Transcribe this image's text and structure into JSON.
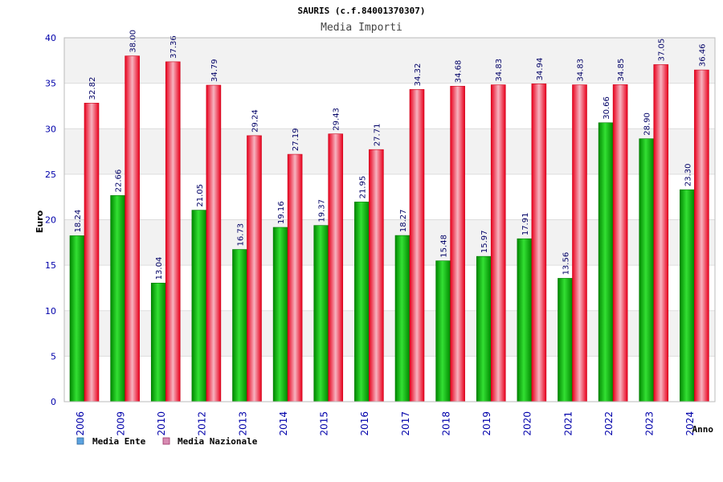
{
  "chart_data": {
    "type": "bar",
    "title": "SAURIS (c.f.84001370307)",
    "subtitle": "Media Importi",
    "xlabel": "Anno",
    "ylabel": "Euro",
    "ylim": [
      0,
      40
    ],
    "yticks": [
      0,
      5,
      10,
      15,
      20,
      25,
      30,
      35,
      40
    ],
    "grid": true,
    "legend_position": "bottom-left",
    "categories": [
      "2006",
      "2009",
      "2010",
      "2012",
      "2013",
      "2014",
      "2015",
      "2016",
      "2017",
      "2018",
      "2019",
      "2020",
      "2021",
      "2022",
      "2023",
      "2024"
    ],
    "series": [
      {
        "name": "Media Ente",
        "color": "#00b000",
        "legend_color": "#5ba3e0",
        "values": [
          18.24,
          22.66,
          13.04,
          21.05,
          16.73,
          19.16,
          19.37,
          21.95,
          18.27,
          15.48,
          15.97,
          17.91,
          13.56,
          30.66,
          28.9,
          23.3
        ],
        "labels": [
          "18.24",
          "22.66",
          "13.04",
          "21.05",
          "16.73",
          "19.16",
          "19.37",
          "21.95",
          "18.27",
          "15.48",
          "15.97",
          "17.91",
          "13.56",
          "30.66",
          "28.90",
          "23.30"
        ]
      },
      {
        "name": "Media Nazionale",
        "color": "#e8001c",
        "legend_color": "#d98cb3",
        "values": [
          32.82,
          38.0,
          37.36,
          34.79,
          29.24,
          27.19,
          29.43,
          27.71,
          34.32,
          34.68,
          34.83,
          34.94,
          34.83,
          34.85,
          37.05,
          36.46
        ],
        "labels": [
          "32.82",
          "38.00",
          "37.36",
          "34.79",
          "29.24",
          "27.19",
          "29.43",
          "27.71",
          "34.32",
          "34.68",
          "34.83",
          "34.94",
          "34.83",
          "34.85",
          "37.05",
          "36.46"
        ]
      }
    ]
  },
  "colors": {
    "title": "#000000",
    "subtitle": "#444444",
    "axis_text": "#0000aa",
    "label_text": "#000066",
    "grid_band": "#f2f2f2",
    "grid_line": "#dddddd",
    "axis_line": "#bbbbbb"
  }
}
